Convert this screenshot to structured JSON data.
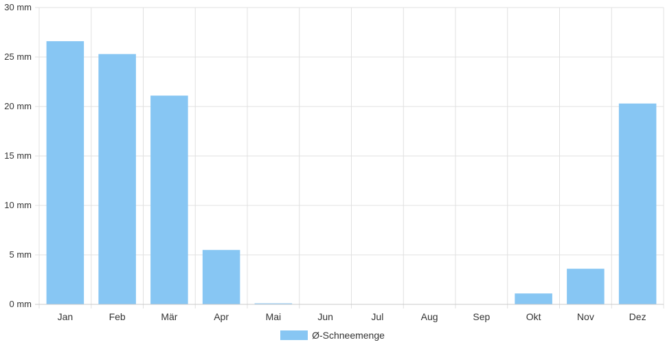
{
  "chart_data": {
    "type": "bar",
    "categories": [
      "Jan",
      "Feb",
      "Mär",
      "Apr",
      "Mai",
      "Jun",
      "Jul",
      "Aug",
      "Sep",
      "Okt",
      "Nov",
      "Dez"
    ],
    "series": [
      {
        "name": "Ø-Schneemenge",
        "values": [
          26.6,
          25.3,
          21.1,
          5.5,
          0.1,
          0,
          0,
          0,
          0,
          1.1,
          3.6,
          20.3
        ]
      }
    ],
    "ylim": [
      0,
      30
    ],
    "yticks": [
      0,
      5,
      10,
      15,
      20,
      25,
      30
    ],
    "y_unit": "mm",
    "grid": true,
    "legend_position": "bottom",
    "bar_color": "#87c6f3",
    "grid_color": "#e0e0e0"
  }
}
